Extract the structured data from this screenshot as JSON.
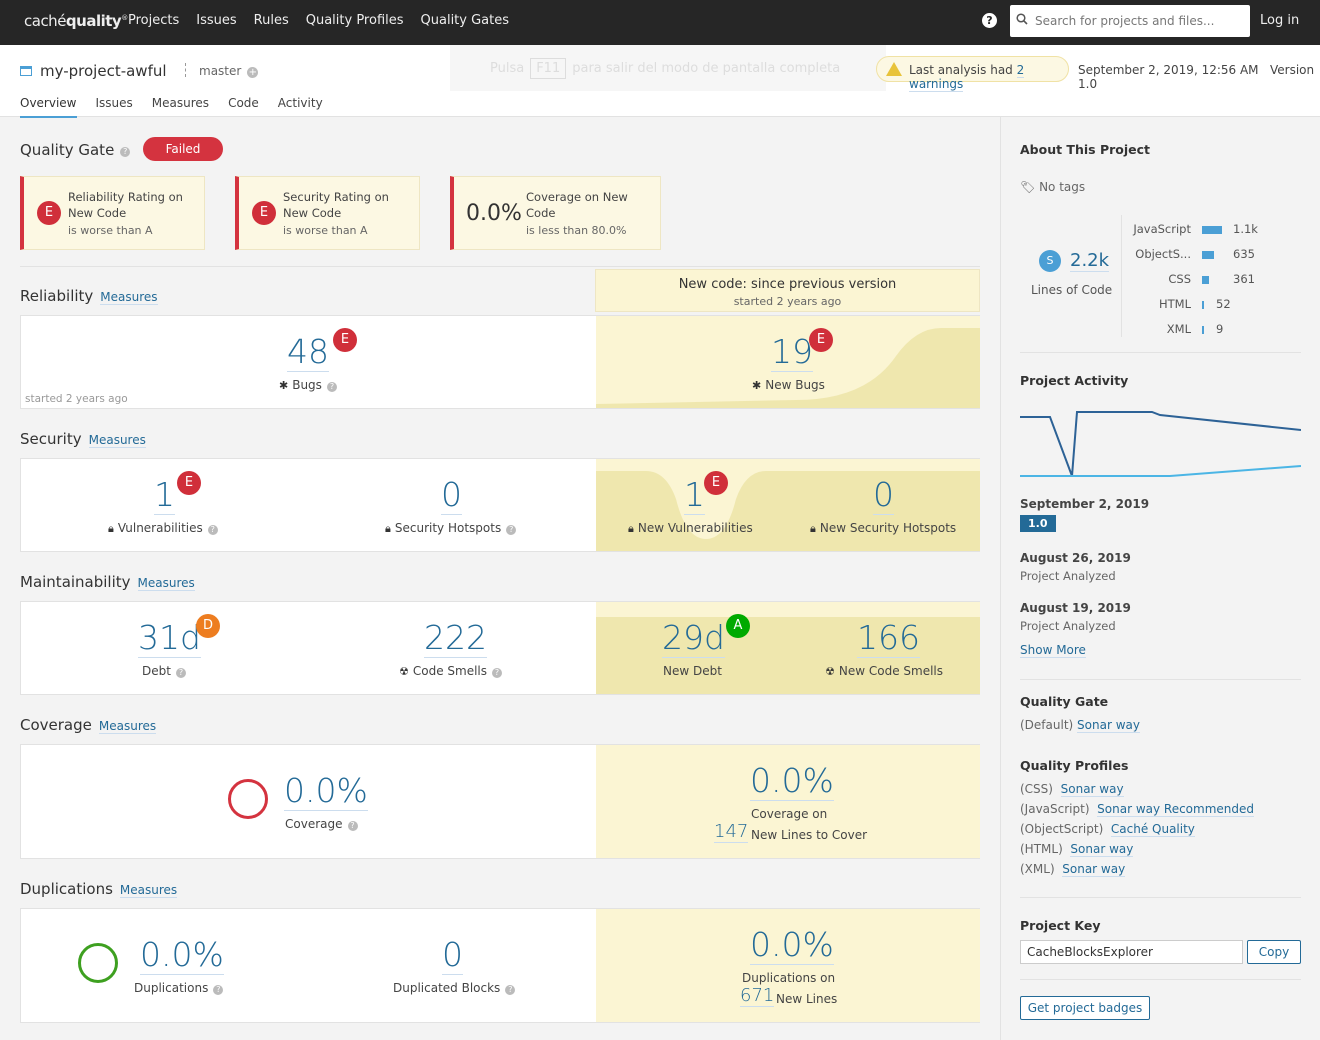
{
  "topbar": {
    "logo_light": "caché",
    "logo_bold": "quality",
    "logo_mark": "®",
    "nav": [
      "Projects",
      "Issues",
      "Rules",
      "Quality Profiles",
      "Quality Gates"
    ],
    "help": "?",
    "search_placeholder": "Search for projects and files...",
    "login": "Log in"
  },
  "header": {
    "project_name": "my-project-awful",
    "branch": "master",
    "fullscreen_pre": "Pulsa",
    "fullscreen_key": "F11",
    "fullscreen_post": "para salir del modo de pantalla completa",
    "warning_pre": "Last analysis had",
    "warning_link": "2 warnings",
    "date": "September 2, 2019, 12:56 AM",
    "version": "Version 1.0",
    "tabs": [
      "Overview",
      "Issues",
      "Measures",
      "Code",
      "Activity"
    ]
  },
  "quality_gate": {
    "title": "Quality Gate",
    "status": "Failed",
    "conditions": [
      {
        "rating": "E",
        "title": "Reliability Rating on New Code",
        "sub": "is worse than A"
      },
      {
        "rating": "E",
        "title": "Security Rating on New Code",
        "sub": "is worse than A"
      },
      {
        "value": "0.0%",
        "title": "Coverage on New Code",
        "sub": "is less than 80.0%"
      }
    ]
  },
  "new_code": {
    "title": "New code: since previous version",
    "sub": "started 2 years ago"
  },
  "measures_link": "Measures",
  "reliability": {
    "title": "Reliability",
    "bugs": "48",
    "bugs_rating": "E",
    "bugs_label": "Bugs",
    "started": "started 2 years ago",
    "new_bugs": "19",
    "new_bugs_rating": "E",
    "new_bugs_label": "New Bugs"
  },
  "security": {
    "title": "Security",
    "vuln": "1",
    "vuln_rating": "E",
    "vuln_label": "Vulnerabilities",
    "hotspots": "0",
    "hotspots_label": "Security Hotspots",
    "new_vuln": "1",
    "new_vuln_rating": "E",
    "new_vuln_label": "New Vulnerabilities",
    "new_hotspots": "0",
    "new_hotspots_label": "New Security Hotspots"
  },
  "maintainability": {
    "title": "Maintainability",
    "debt": "31d",
    "debt_rating": "D",
    "debt_label": "Debt",
    "smells": "222",
    "smells_label": "Code Smells",
    "new_debt": "29d",
    "new_debt_rating": "A",
    "new_debt_label": "New Debt",
    "new_smells": "166",
    "new_smells_label": "New Code Smells"
  },
  "coverage": {
    "title": "Coverage",
    "value": "0.0%",
    "label": "Coverage",
    "new_value": "0.0%",
    "new_label_1": "Coverage on",
    "new_lines": "147",
    "new_label_2": "New Lines to Cover"
  },
  "duplications": {
    "title": "Duplications",
    "value": "0.0%",
    "label": "Duplications",
    "blocks": "0",
    "blocks_label": "Duplicated Blocks",
    "new_value": "0.0%",
    "new_label_1": "Duplications on",
    "new_lines": "671",
    "new_label_2": "New Lines"
  },
  "sidebar": {
    "about": "About This Project",
    "tags": "No tags",
    "loc_badge": "S",
    "loc": "2.2k",
    "loc_label": "Lines of Code",
    "languages": [
      {
        "name": "JavaScript",
        "value": "1.1k",
        "share": 1.0
      },
      {
        "name": "ObjectS...",
        "value": "635",
        "share": 0.58
      },
      {
        "name": "CSS",
        "value": "361",
        "share": 0.33
      },
      {
        "name": "HTML",
        "value": "52",
        "share": 0.05
      },
      {
        "name": "XML",
        "value": "9",
        "share": 0.01
      }
    ],
    "activity_title": "Project Activity",
    "events": [
      {
        "date": "September 2, 2019",
        "tag": "1.0"
      },
      {
        "date": "August 26, 2019",
        "desc": "Project Analyzed"
      },
      {
        "date": "August 19, 2019",
        "desc": "Project Analyzed"
      }
    ],
    "show_more": "Show More",
    "qg_title": "Quality Gate",
    "qg_default": "(Default)",
    "qg_link": "Sonar way",
    "qp_title": "Quality Profiles",
    "profiles": [
      {
        "lang": "(CSS)",
        "name": "Sonar way"
      },
      {
        "lang": "(JavaScript)",
        "name": "Sonar way Recommended"
      },
      {
        "lang": "(ObjectScript)",
        "name": "Caché Quality"
      },
      {
        "lang": "(HTML)",
        "name": "Sonar way"
      },
      {
        "lang": "(XML)",
        "name": "Sonar way"
      }
    ],
    "key_title": "Project Key",
    "key": "CacheBlocksExplorer",
    "copy": "Copy",
    "badges": "Get project badges"
  },
  "colors": {
    "accent": "#236a97",
    "failed": "#d4333f",
    "new_code_bg": "#fbf5d3",
    "topbar": "#262626"
  }
}
